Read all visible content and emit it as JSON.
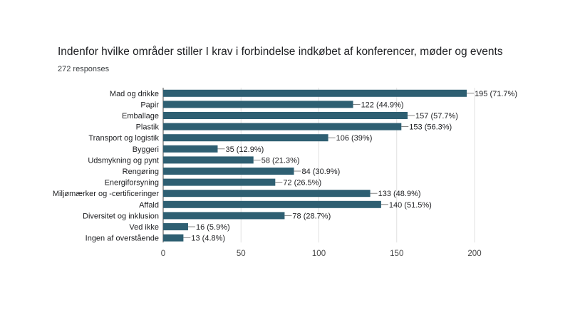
{
  "title": "Indenfor hvilke områder stiller I krav i forbindelse indkøbet af konferencer, møder og events",
  "subtitle": "272 responses",
  "colors": {
    "bar": "#2e5f72",
    "grid": "#e0e0e0",
    "axis": "#444444"
  },
  "chart_data": {
    "type": "bar",
    "orientation": "horizontal",
    "title": "Indenfor hvilke områder stiller I krav i forbindelse indkøbet af konferencer, møder og events",
    "subtitle": "272 responses",
    "categories": [
      "Mad og drikke",
      "Papir",
      "Emballage",
      "Plastik",
      "Transport og logistik",
      "Byggeri",
      "Udsmykning og pynt",
      "Rengøring",
      "Energiforsyning",
      "Miljømærker og -certificeringer",
      "Affald",
      "Diversitet og inklusion",
      "Ved ikke",
      "Ingen af overstående"
    ],
    "values": [
      195,
      122,
      157,
      153,
      106,
      35,
      58,
      84,
      72,
      133,
      140,
      78,
      16,
      13
    ],
    "data_labels": [
      "195 (71.7%)",
      "122 (44.9%)",
      "157 (57.7%)",
      "153 (56.3%)",
      "106 (39%)",
      "35 (12.9%)",
      "58 (21.3%)",
      "84 (30.9%)",
      "72 (26.5%)",
      "133 (48.9%)",
      "140 (51.5%)",
      "78 (28.7%)",
      "16 (5.9%)",
      "13 (4.8%)"
    ],
    "xlim": [
      0,
      200
    ],
    "xticks": [
      "0",
      "50",
      "100",
      "150",
      "200"
    ],
    "grid": true
  }
}
